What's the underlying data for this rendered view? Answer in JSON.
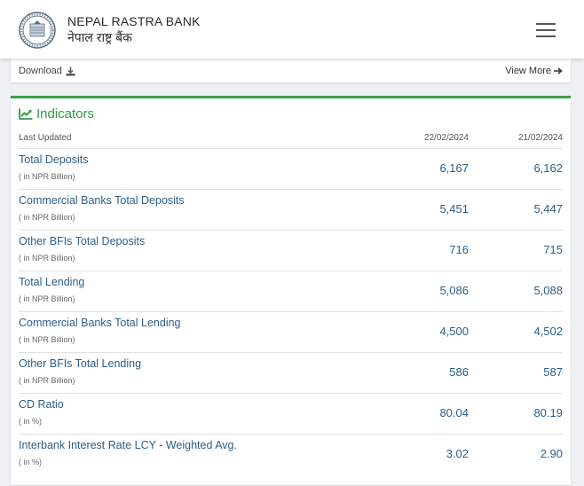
{
  "header": {
    "bank_name_en": "NEPAL RASTRA BANK",
    "bank_name_np": "नेपाल राष्ट्र बैंक",
    "logo_icon": "nrb-seal-icon",
    "menu_icon": "hamburger-menu-icon"
  },
  "download_bar": {
    "download_label": "Download",
    "download_icon": "download-icon",
    "view_more_label": "View More",
    "view_more_icon": "arrow-right-icon"
  },
  "indicators": {
    "title": "Indicators",
    "title_icon": "line-chart-icon",
    "accent_color": "#3aa04b",
    "columns": {
      "label": "Last Updated",
      "date1": "22/02/2024",
      "date2": "21/02/2024"
    },
    "rows": [
      {
        "name": "Total Deposits",
        "unit": "( in NPR Billion)",
        "v1": "6,167",
        "v2": "6,162"
      },
      {
        "name": "Commercial Banks Total Deposits",
        "unit": "( in NPR Billion)",
        "v1": "5,451",
        "v2": "5,447"
      },
      {
        "name": "Other BFIs Total Deposits",
        "unit": "( in NPR Billion)",
        "v1": "716",
        "v2": "715"
      },
      {
        "name": "Total Lending",
        "unit": "( in NPR Billion)",
        "v1": "5,086",
        "v2": "5,088"
      },
      {
        "name": "Commercial Banks Total Lending",
        "unit": "( in NPR Billion)",
        "v1": "4,500",
        "v2": "4,502"
      },
      {
        "name": "Other BFIs Total Lending",
        "unit": "( in NPR Billion)",
        "v1": "586",
        "v2": "587"
      },
      {
        "name": "CD Ratio",
        "unit": "( in %)",
        "v1": "80.04",
        "v2": "80.19"
      },
      {
        "name": "Interbank Interest Rate LCY - Weighted Avg.",
        "unit": "( in %)",
        "v1": "3.02",
        "v2": "2.90"
      }
    ]
  }
}
